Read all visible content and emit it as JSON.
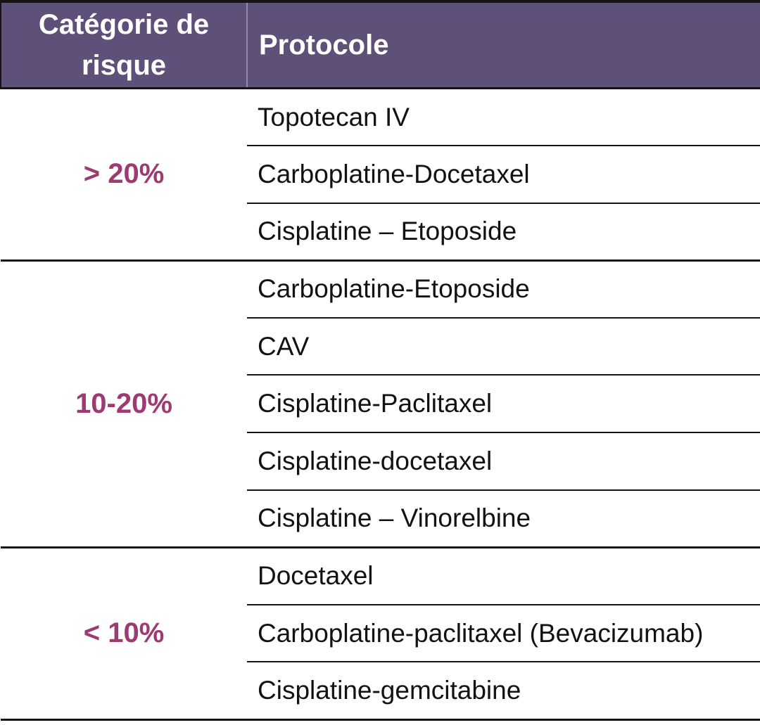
{
  "table": {
    "columns": [
      {
        "label": "Catégorie de risque"
      },
      {
        "label": "Protocole"
      }
    ],
    "groups": [
      {
        "label": "> 20%",
        "protocols": [
          "Topotecan IV",
          "Carboplatine-Docetaxel",
          "Cisplatine – Etoposide"
        ]
      },
      {
        "label": "10-20%",
        "protocols": [
          "Carboplatine-Etoposide",
          "CAV",
          "Cisplatine-Paclitaxel",
          "Cisplatine-docetaxel",
          "Cisplatine – Vinorelbine"
        ]
      },
      {
        "label": "< 10%",
        "protocols": [
          "Docetaxel",
          "Carboplatine-paclitaxel (Bevacizumab)",
          "Cisplatine-gemcitabine"
        ]
      }
    ]
  },
  "colors": {
    "header_background": "#5e5078",
    "header_text": "#ffffff",
    "header_divider": "#948aa8",
    "risk_label_text": "#9d3a72",
    "body_text": "#121212",
    "grid_line": "#141414",
    "page_background": "#ffffff"
  }
}
